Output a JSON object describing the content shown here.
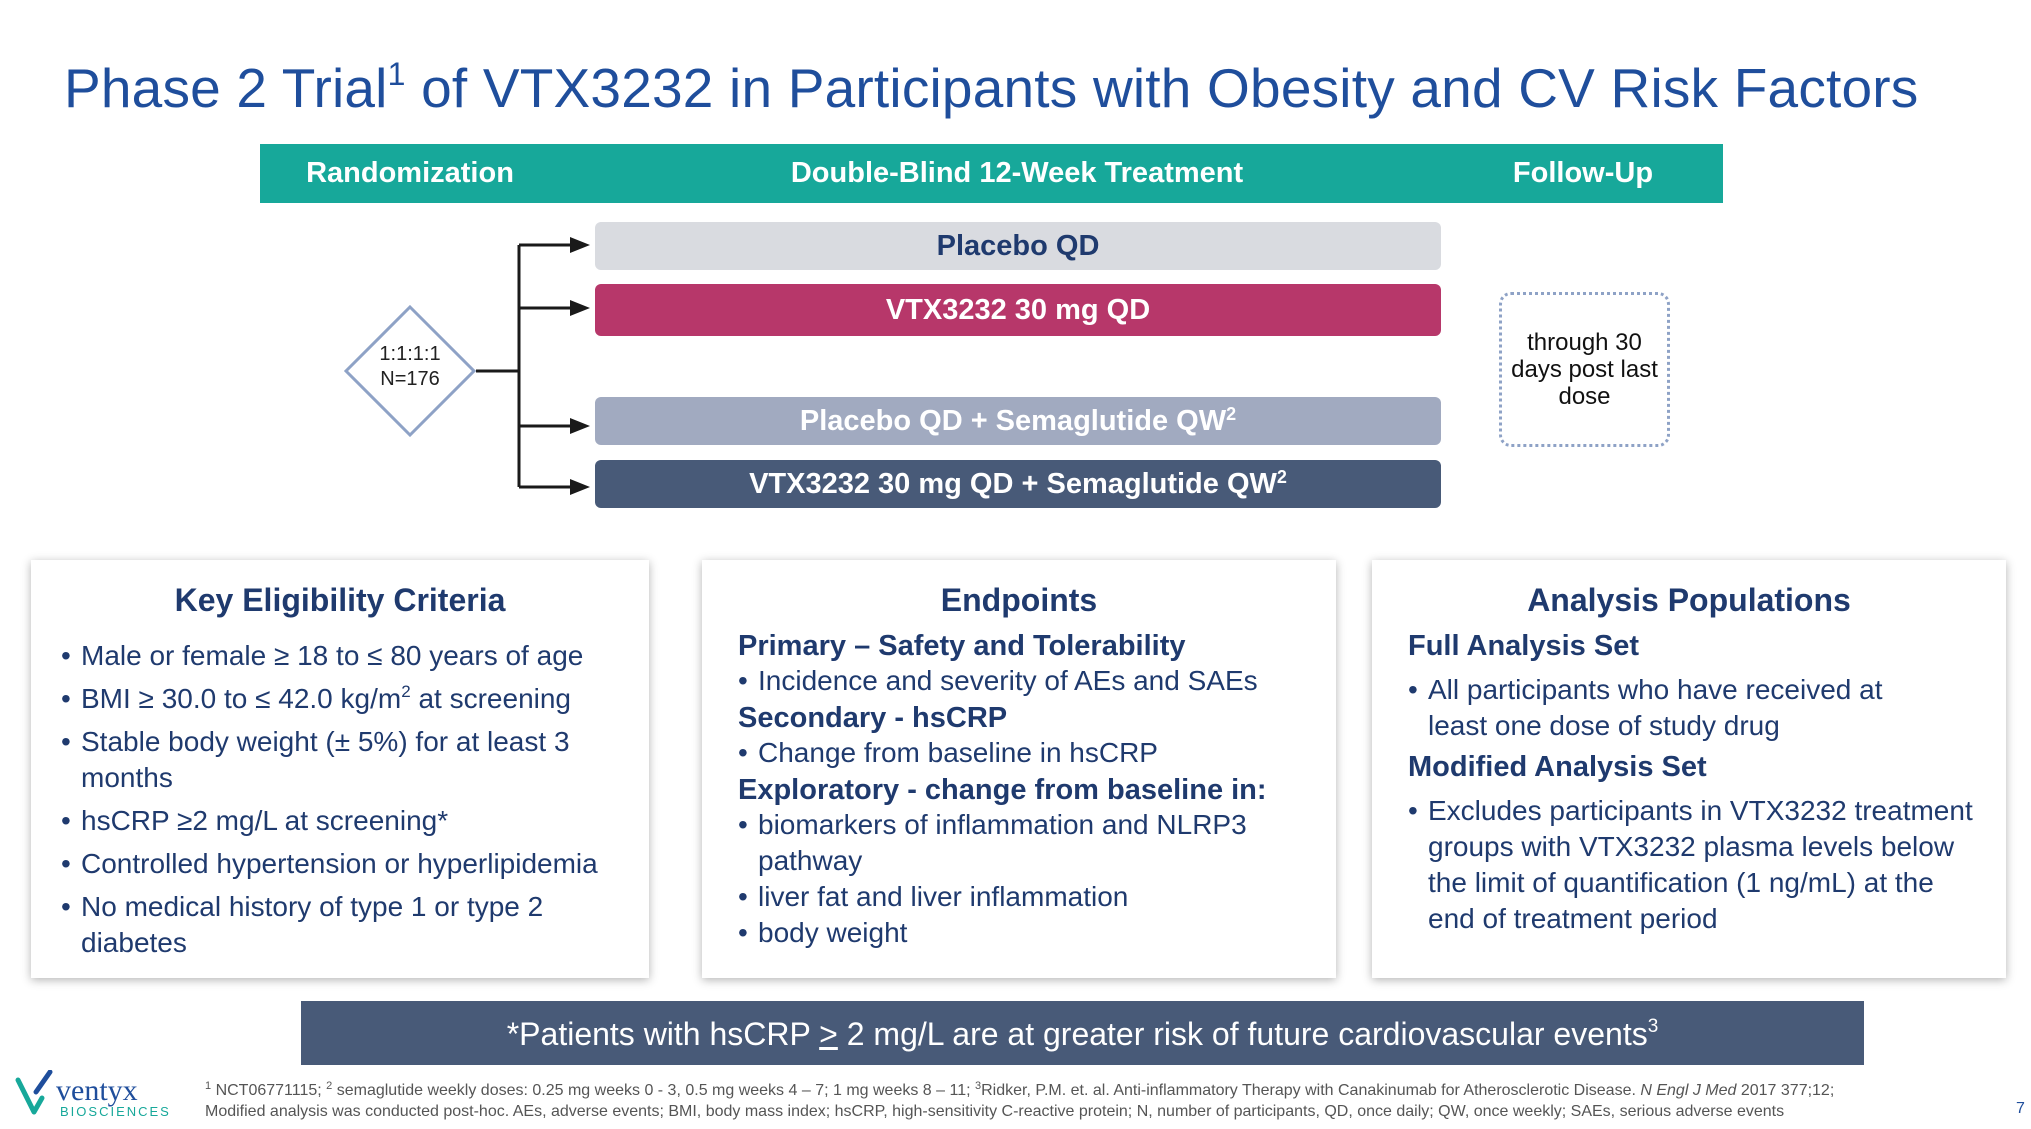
{
  "title": {
    "pre": "Phase 2 Trial",
    "sup": "1",
    "post": " of VTX3232 in Participants with Obesity and CV Risk Factors"
  },
  "phases": {
    "randomization": "Randomization",
    "treatment": "Double-Blind 12-Week Treatment",
    "followup": "Follow-Up"
  },
  "randomization": {
    "ratio": "1:1:1:1",
    "n": "N=176"
  },
  "arms": [
    {
      "label": "Placebo QD",
      "sup": ""
    },
    {
      "label": "VTX3232 30 mg QD",
      "sup": ""
    },
    {
      "label": "Placebo QD + Semaglutide QW",
      "sup": "2"
    },
    {
      "label": "VTX3232 30 mg QD + Semaglutide QW",
      "sup": "2"
    }
  ],
  "followup_note": "through 30 days post last dose",
  "eligibility": {
    "title": "Key Eligibility Criteria",
    "items": [
      "Male or female ≥ 18 to ≤ 80 years of age",
      {
        "pre": "BMI ≥ 30.0 to ≤ 42.0 kg/m",
        "sup": "2",
        "post": " at screening"
      },
      "Stable body weight (± 5%) for at least 3 months",
      "hsCRP ≥2 mg/L at screening*",
      "Controlled hypertension or hyperlipidemia",
      "No medical history of type 1 or type 2 diabetes"
    ]
  },
  "endpoints": {
    "title": "Endpoints",
    "primary_head": "Primary – Safety and Tolerability",
    "primary_items": [
      "Incidence and severity of AEs and SAEs"
    ],
    "secondary_head": "Secondary - hsCRP",
    "secondary_items": [
      "Change from baseline in hsCRP"
    ],
    "exploratory_head": "Exploratory - change from baseline in:",
    "exploratory_items": [
      "biomarkers of inflammation and NLRP3 pathway",
      "liver fat and liver inflammation",
      "body weight"
    ]
  },
  "populations": {
    "title": "Analysis Populations",
    "fas_head": "Full Analysis Set",
    "fas_items": [
      "All participants who have received at least one dose of study drug"
    ],
    "mas_head": "Modified Analysis Set",
    "mas_items": [
      "Excludes participants in VTX3232 treatment groups with VTX3232 plasma levels below the limit of quantification (1 ng/mL) at the end of treatment period"
    ]
  },
  "note": {
    "pre": "*Patients with hsCRP ",
    "underlined": ">",
    "post": " 2 mg/L are at greater risk of future cardiovascular events",
    "sup": "3"
  },
  "footnote": {
    "sup1": "1",
    "part1": " NCT06771115; ",
    "sup2": "2",
    "part2": " semaglutide weekly doses: 0.25 mg weeks 0 - 3, 0.5 mg weeks 4 – 7; 1 mg  weeks 8 – 11; ",
    "sup3": "3",
    "part3": "Ridker, P.M. et. al. Anti-inflammatory Therapy with Canakinumab for Atherosclerotic Disease. ",
    "journal": "N Engl J Med",
    "part4": " 2017 377;12;",
    "line2": "Modified analysis was conducted post-hoc. AEs, adverse events; BMI, body mass index; hsCRP, high-sensitivity C-reactive protein; N, number of participants, QD, once daily; QW, once weekly; SAEs, serious adverse events"
  },
  "page_number": "7",
  "logo": {
    "name": "ventyx",
    "sub": "BIOSCIENCES"
  },
  "colors": {
    "title": "#1f4e9c",
    "phase_bar": "#17a89a",
    "arm_placebo": "#d9dbe0",
    "arm_vtx": "#b7376a",
    "arm_placebo_sema": "#a1aac0",
    "arm_vtx_sema": "#485a78",
    "note_bar": "#485a78",
    "text": "#1f3a6e"
  }
}
